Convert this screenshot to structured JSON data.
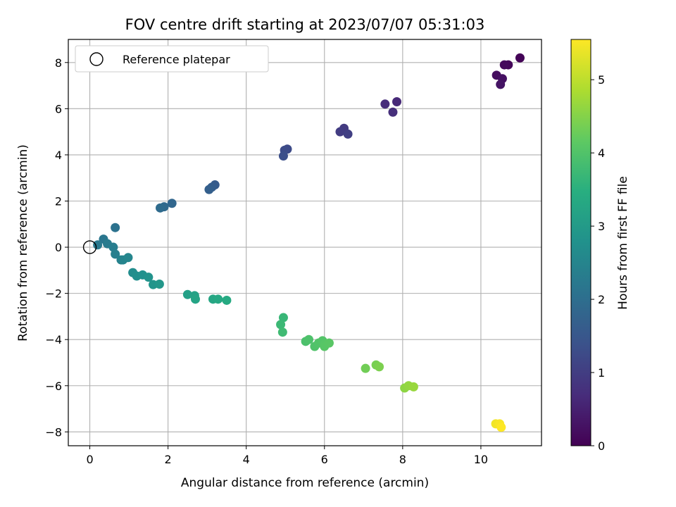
{
  "chart_data": {
    "type": "scatter",
    "title": "FOV centre drift starting at 2023/07/07 05:31:03",
    "xlabel": "Angular distance from reference (arcmin)",
    "ylabel": "Rotation from reference (arcmin)",
    "xlim": [
      -0.55,
      11.55
    ],
    "ylim": [
      -8.6,
      9.0
    ],
    "xticks": [
      0,
      2,
      4,
      6,
      8,
      10
    ],
    "yticks": [
      -8,
      -6,
      -4,
      -2,
      0,
      2,
      4,
      6,
      8
    ],
    "grid": true,
    "legend": {
      "entries": [
        "Reference platepar"
      ],
      "position": "top-left"
    },
    "colorbar": {
      "label": "Hours from first FF file",
      "colormap": "viridis",
      "range": [
        0,
        5.55
      ],
      "ticks": [
        0,
        1,
        2,
        3,
        4,
        5
      ]
    },
    "reference_point": {
      "x": 0,
      "y": 0
    },
    "points": [
      {
        "x": 11.0,
        "y": 8.2,
        "h": 0.05
      },
      {
        "x": 10.7,
        "y": 7.9,
        "h": 0.1
      },
      {
        "x": 10.6,
        "y": 7.9,
        "h": 0.15
      },
      {
        "x": 10.4,
        "y": 7.45,
        "h": 0.2
      },
      {
        "x": 10.55,
        "y": 7.3,
        "h": 0.25
      },
      {
        "x": 10.5,
        "y": 7.05,
        "h": 0.3
      },
      {
        "x": 7.85,
        "y": 6.3,
        "h": 0.65
      },
      {
        "x": 7.55,
        "y": 6.2,
        "h": 0.7
      },
      {
        "x": 7.75,
        "y": 5.85,
        "h": 0.75
      },
      {
        "x": 6.5,
        "y": 5.15,
        "h": 0.95
      },
      {
        "x": 6.4,
        "y": 5.0,
        "h": 1.0
      },
      {
        "x": 6.6,
        "y": 4.9,
        "h": 1.05
      },
      {
        "x": 5.05,
        "y": 4.25,
        "h": 1.25
      },
      {
        "x": 4.98,
        "y": 4.2,
        "h": 1.3
      },
      {
        "x": 4.95,
        "y": 3.95,
        "h": 1.35
      },
      {
        "x": 3.2,
        "y": 2.7,
        "h": 1.6
      },
      {
        "x": 3.12,
        "y": 2.6,
        "h": 1.65
      },
      {
        "x": 3.05,
        "y": 2.5,
        "h": 1.7
      },
      {
        "x": 2.1,
        "y": 1.9,
        "h": 1.85
      },
      {
        "x": 1.9,
        "y": 1.75,
        "h": 1.9
      },
      {
        "x": 1.8,
        "y": 1.7,
        "h": 1.95
      },
      {
        "x": 0.65,
        "y": 0.85,
        "h": 2.1
      },
      {
        "x": 0.35,
        "y": 0.35,
        "h": 2.2
      },
      {
        "x": 0.2,
        "y": 0.1,
        "h": 2.25
      },
      {
        "x": 0.45,
        "y": 0.15,
        "h": 2.3
      },
      {
        "x": 0.6,
        "y": 0.0,
        "h": 2.35
      },
      {
        "x": 0.65,
        "y": -0.3,
        "h": 2.4
      },
      {
        "x": 0.8,
        "y": -0.55,
        "h": 2.45
      },
      {
        "x": 0.85,
        "y": -0.55,
        "h": 2.5
      },
      {
        "x": 0.98,
        "y": -0.45,
        "h": 2.55
      },
      {
        "x": 1.1,
        "y": -1.1,
        "h": 2.7
      },
      {
        "x": 1.2,
        "y": -1.25,
        "h": 2.75
      },
      {
        "x": 1.35,
        "y": -1.2,
        "h": 2.8
      },
      {
        "x": 1.5,
        "y": -1.3,
        "h": 2.85
      },
      {
        "x": 1.62,
        "y": -1.62,
        "h": 2.9
      },
      {
        "x": 1.78,
        "y": -1.6,
        "h": 2.95
      },
      {
        "x": 2.5,
        "y": -2.05,
        "h": 3.15
      },
      {
        "x": 2.68,
        "y": -2.1,
        "h": 3.2
      },
      {
        "x": 2.7,
        "y": -2.25,
        "h": 3.25
      },
      {
        "x": 3.15,
        "y": -2.25,
        "h": 3.3
      },
      {
        "x": 3.28,
        "y": -2.25,
        "h": 3.35
      },
      {
        "x": 3.5,
        "y": -2.3,
        "h": 3.4
      },
      {
        "x": 4.95,
        "y": -3.05,
        "h": 3.7
      },
      {
        "x": 4.88,
        "y": -3.35,
        "h": 3.75
      },
      {
        "x": 4.93,
        "y": -3.68,
        "h": 3.8
      },
      {
        "x": 5.52,
        "y": -4.08,
        "h": 3.95
      },
      {
        "x": 5.6,
        "y": -4.0,
        "h": 3.98
      },
      {
        "x": 5.75,
        "y": -4.3,
        "h": 4.0
      },
      {
        "x": 5.85,
        "y": -4.15,
        "h": 4.03
      },
      {
        "x": 5.95,
        "y": -4.05,
        "h": 4.05
      },
      {
        "x": 6.0,
        "y": -4.2,
        "h": 4.08
      },
      {
        "x": 6.0,
        "y": -4.3,
        "h": 4.1
      },
      {
        "x": 6.12,
        "y": -4.15,
        "h": 4.12
      },
      {
        "x": 7.05,
        "y": -5.25,
        "h": 4.35
      },
      {
        "x": 7.32,
        "y": -5.1,
        "h": 4.4
      },
      {
        "x": 7.4,
        "y": -5.18,
        "h": 4.45
      },
      {
        "x": 8.05,
        "y": -6.1,
        "h": 4.6
      },
      {
        "x": 8.15,
        "y": -6.0,
        "h": 4.65
      },
      {
        "x": 8.28,
        "y": -6.05,
        "h": 4.7
      },
      {
        "x": 10.38,
        "y": -7.65,
        "h": 5.45
      },
      {
        "x": 10.48,
        "y": -7.65,
        "h": 5.5
      },
      {
        "x": 10.52,
        "y": -7.8,
        "h": 5.55
      }
    ]
  }
}
